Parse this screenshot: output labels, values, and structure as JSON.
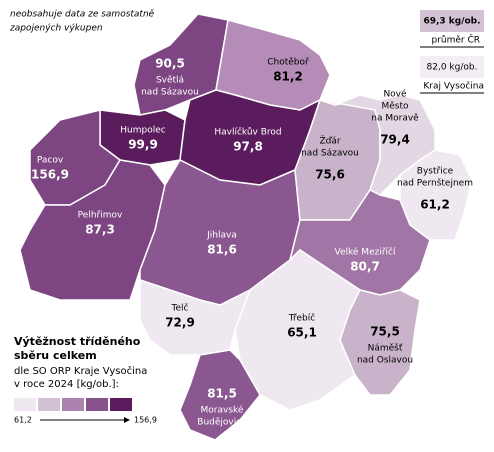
{
  "note": [
    "neobsahuje data ze samostatně",
    "zapojených výkupen"
  ],
  "reference": [
    {
      "value": "69,3 kg/ob.",
      "label": "průměr ČR"
    },
    {
      "value": "82,0 kg/ob.",
      "label": "Kraj Vysočina"
    }
  ],
  "legend": {
    "title": [
      "Výtěžnost tříděného",
      "sběru celkem"
    ],
    "subtitle": [
      "dle SO ORP Kraje Vysočina",
      "v roce 2024 [kg/ob.]:"
    ],
    "colors": [
      "#efe8f0",
      "#d3c2d4",
      "#ab83ae",
      "#87528c",
      "#5a1c5c"
    ],
    "min": "61,2",
    "max": "156,9"
  },
  "regions": [
    {
      "name": [
        "Světlá",
        "nad Sázavou"
      ],
      "value": "90,5",
      "color": "#7d4582"
    },
    {
      "name": [
        "Chotěboř"
      ],
      "value": "81,2",
      "color": "#b58cb8"
    },
    {
      "name": [
        "Humpolec"
      ],
      "value": "99,9",
      "color": "#5a1c5c"
    },
    {
      "name": [
        "Havlíčkův Brod"
      ],
      "value": "97,8",
      "color": "#5a1c5c"
    },
    {
      "name": [
        "Pacov"
      ],
      "value": "156,9",
      "color": "#7d4582"
    },
    {
      "name": [
        "Pelhřimov"
      ],
      "value": "87,3",
      "color": "#7d4582"
    },
    {
      "name": [
        "Jihlava"
      ],
      "value": "81,6",
      "color": "#8b5790"
    },
    {
      "name": [
        "Žďár",
        "nad Sázavou"
      ],
      "value": "75,6",
      "color": "#c9b3ca"
    },
    {
      "name": [
        "Nové",
        "Město",
        "na Moravě"
      ],
      "value": "79,4",
      "color": "#e3d7e4"
    },
    {
      "name": [
        "Bystřice",
        "nad Pernštejnem"
      ],
      "value": "61,2",
      "color": "#efe8f0"
    },
    {
      "name": [
        "Velké Meziříčí"
      ],
      "value": "80,7",
      "color": "#a175a5"
    },
    {
      "name": [
        "Třebíč"
      ],
      "value": "65,1",
      "color": "#efe8f0"
    },
    {
      "name": [
        "Náměšť",
        "nad Oslavou"
      ],
      "value": "75,5",
      "color": "#c9b3ca"
    },
    {
      "name": [
        "Telč"
      ],
      "value": "72,9",
      "color": "#efe8f0"
    },
    {
      "name": [
        "Moravské",
        "Budějovice"
      ],
      "value": "81,5",
      "color": "#8b5790"
    }
  ]
}
